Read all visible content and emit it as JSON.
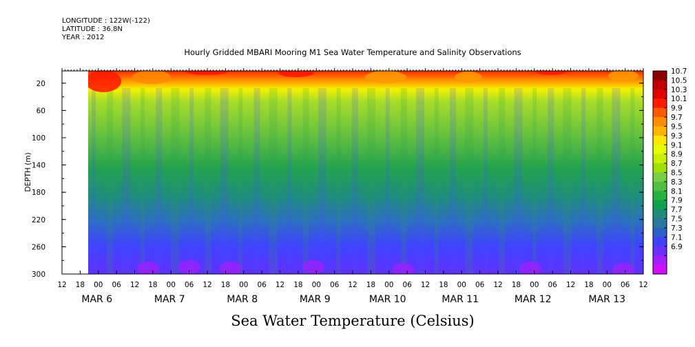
{
  "header": {
    "longitude": "LONGITUDE : 122W(-122)",
    "latitude": "LATITUDE : 36.8N",
    "year": "YEAR : 2012",
    "title": "Hourly Gridded MBARI Mooring M1 Sea Water Temperature and Salinity Observations",
    "bottom_title": "Sea Water Temperature (Celsius)"
  },
  "chart_data": {
    "type": "heatmap",
    "ylabel": "DEPTH (m)",
    "y_reversed": true,
    "ylim": [
      300,
      2
    ],
    "y_ticks": [
      20,
      60,
      100,
      140,
      180,
      220,
      260,
      300
    ],
    "x_hour_ticks": [
      "12",
      "18",
      "00",
      "06",
      "12",
      "18",
      "00",
      "06",
      "12",
      "18",
      "00",
      "06",
      "12",
      "18",
      "00",
      "06",
      "12",
      "18",
      "00",
      "06",
      "12",
      "18",
      "00",
      "06",
      "12",
      "18",
      "00",
      "06",
      "12",
      "18",
      "00",
      "06",
      "12"
    ],
    "x_day_labels": [
      "MAR  6",
      "MAR  7",
      "MAR  8",
      "MAR  9",
      "MAR 10",
      "MAR 11",
      "MAR 12",
      "MAR 13"
    ],
    "x_range": [
      "2012-03-05 12:00",
      "2012-03-13 12:00"
    ],
    "data_start": "2012-03-06 00:00",
    "colorbar_levels": [
      "10.7",
      "10.5",
      "10.3",
      "10.1",
      "9.9",
      "9.7",
      "9.5",
      "9.3",
      "9.1",
      "8.9",
      "8.7",
      "8.5",
      "8.3",
      "8.1",
      "7.9",
      "7.7",
      "7.5",
      "7.3",
      "7.1",
      "6.9"
    ],
    "colorbar_colors": [
      "#8c0000",
      "#c00000",
      "#e00000",
      "#ff1a00",
      "#ff5a00",
      "#ff8c00",
      "#ffb400",
      "#ffe600",
      "#e6ff00",
      "#c8f000",
      "#a0e000",
      "#78d040",
      "#50c040",
      "#28b040",
      "#0fa050",
      "#1e8c7a",
      "#2878a0",
      "#2d5fc8",
      "#4040ff",
      "#6a30ff",
      "#a020ff",
      "#d010ff"
    ],
    "depth_temperature_profile": [
      {
        "depth": 10,
        "temp": 10.3
      },
      {
        "depth": 30,
        "temp": 9.7
      },
      {
        "depth": 50,
        "temp": 9.2
      },
      {
        "depth": 80,
        "temp": 8.8
      },
      {
        "depth": 120,
        "temp": 8.5
      },
      {
        "depth": 160,
        "temp": 8.2
      },
      {
        "depth": 200,
        "temp": 7.9
      },
      {
        "depth": 240,
        "temp": 7.6
      },
      {
        "depth": 280,
        "temp": 7.4
      },
      {
        "depth": 300,
        "temp": 7.2
      }
    ]
  }
}
